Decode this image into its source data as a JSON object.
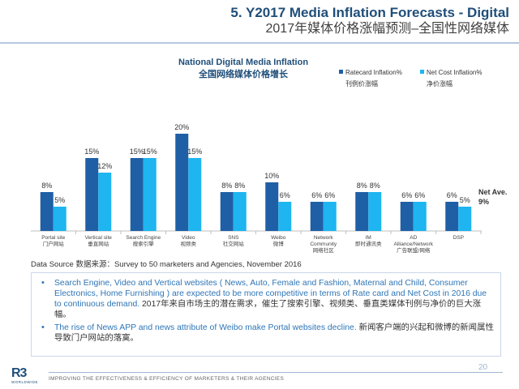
{
  "header": {
    "title_en": "5. Y2017 Media Inflation Forecasts - Digital",
    "title_zh": "2017年媒体价格涨幅预测–全国性网络媒体"
  },
  "colors": {
    "rate_card": "#1F5FA6",
    "net_cost": "#1EB5F0",
    "title_blue": "#1f4e79",
    "accent": "#2E75B6"
  },
  "chart_data": {
    "type": "bar",
    "title": "National Digital Media Inflation",
    "subtitle": "全国网络媒体价格增长",
    "categories": [
      {
        "en": "Portal site",
        "zh": "门户网站"
      },
      {
        "en": "Vertical site",
        "zh": "垂直网站"
      },
      {
        "en": "Search Engine",
        "zh": "搜索引擎"
      },
      {
        "en": "Video",
        "zh": "视频类"
      },
      {
        "en": "SNS",
        "zh": "社交网站"
      },
      {
        "en": "Weibo",
        "zh": "微博"
      },
      {
        "en": "Network Community",
        "zh": "网络社区"
      },
      {
        "en": "IM",
        "zh": "即时通讯类"
      },
      {
        "en": "AD Alliance/Network",
        "zh": "广告联盟/网络"
      },
      {
        "en": "DSP",
        "zh": ""
      }
    ],
    "series": [
      {
        "name": "Ratecard Inflation%",
        "name_zh": "刊例价涨幅",
        "values": [
          8,
          15,
          15,
          20,
          8,
          10,
          6,
          8,
          6,
          6
        ]
      },
      {
        "name": "Net Cost Inflation%",
        "name_zh": "净价涨幅",
        "values": [
          5,
          12,
          15,
          15,
          8,
          6,
          6,
          8,
          6,
          5
        ]
      }
    ],
    "value_suffix": "%",
    "ylim": [
      0,
      22
    ],
    "grid": false,
    "legend": "top-right",
    "annotation": {
      "line1": "Net Ave.",
      "line2": "9%"
    }
  },
  "source": "Data Source 数据来源：Survey to 50 marketers and Agencies, November 2016",
  "notes": [
    {
      "en": "Search Engine, Video and Vertical websites ( News, Auto, Female and Fashion, Maternal and Child, Consumer Electronics, Home Furnishing ) are expected to be more competitive in terms of Rate card and Net Cost in 2016 due to continuous demand.",
      "zh": "2017年来自市场主的潜在需求，催生了搜索引擎、视频类、垂直类媒体刊例与净价的巨大涨幅。"
    },
    {
      "en": "The rise of News APP and news attribute of Weibo make Portal websites decline.",
      "zh": "新闻客户端的兴起和微博的新闻属性导致门户网站的落寞。"
    }
  ],
  "footer": {
    "logo_mark": "R3",
    "logo_sub": "WORLDWIDE",
    "tagline": "IMPROVING THE EFFECTIVENESS & EFFICIENCY OF MARKETERS & THEIR AGENCIES",
    "page_number": "20"
  }
}
